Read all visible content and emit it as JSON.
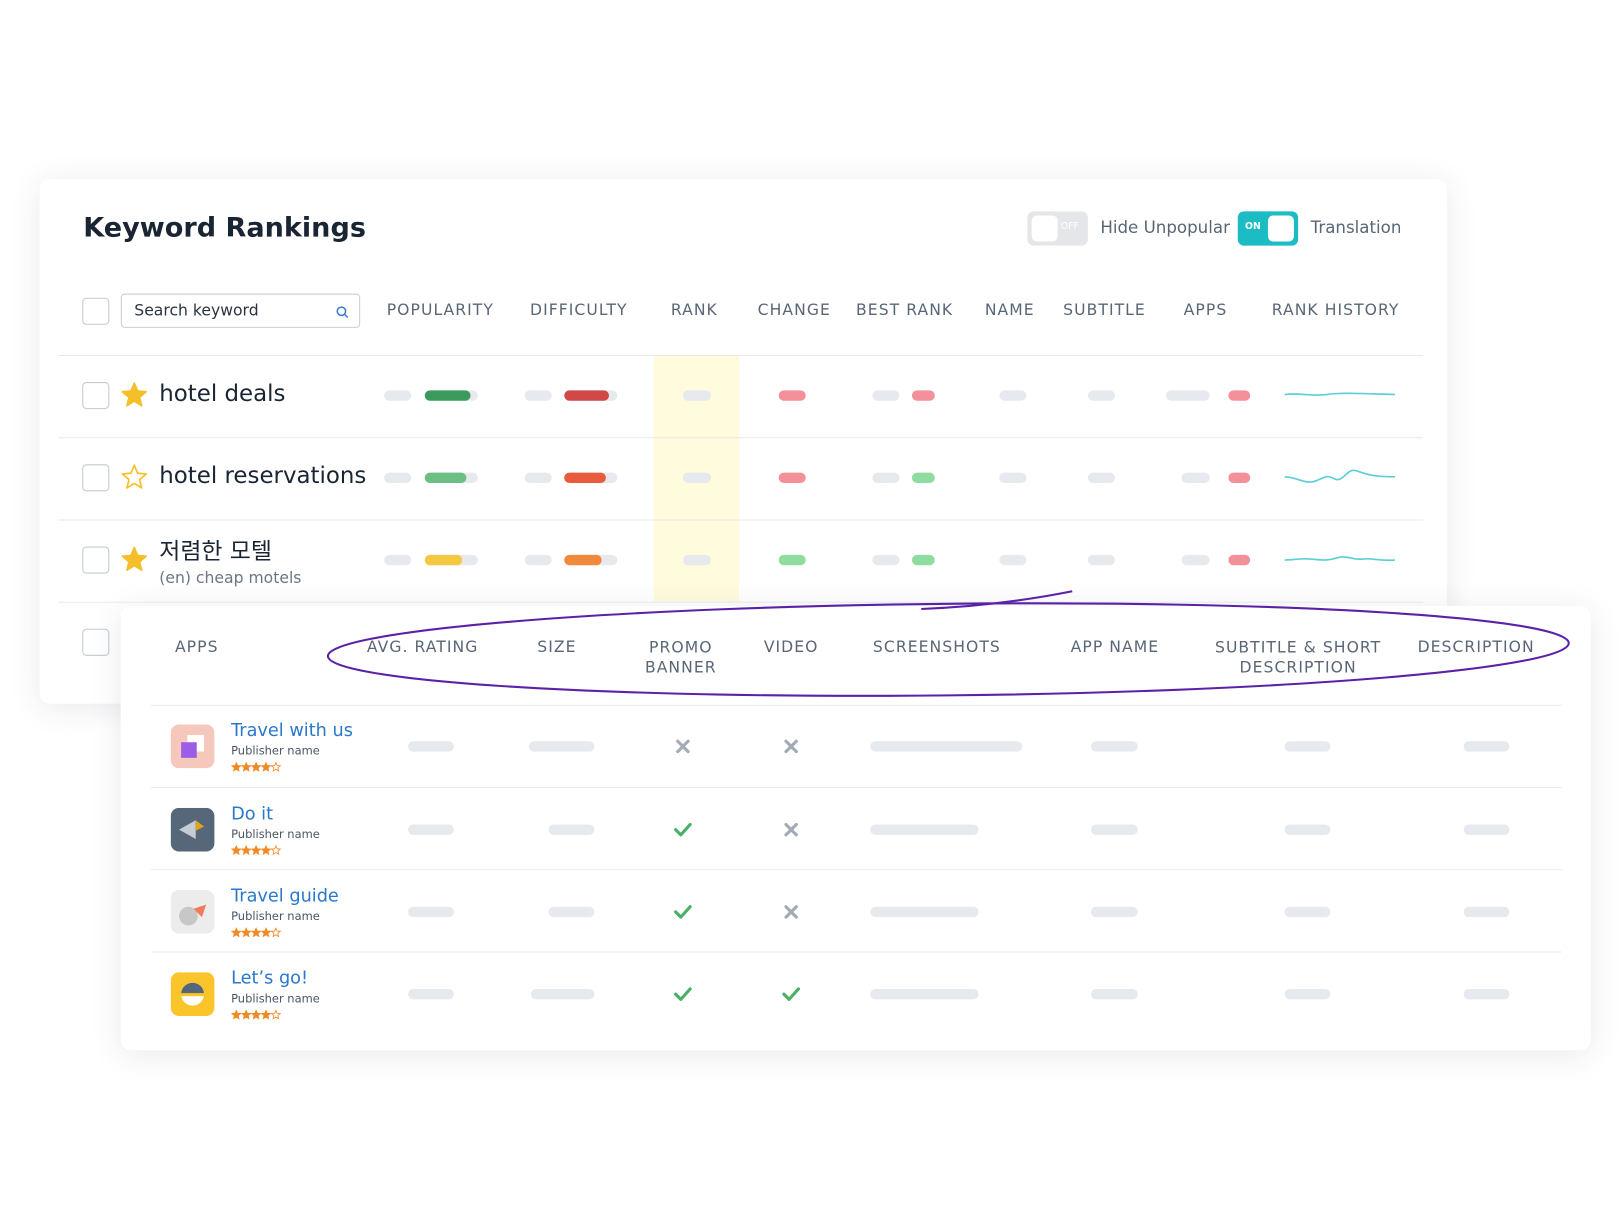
{
  "header": {
    "title": "Keyword Rankings",
    "toggles": [
      {
        "state": "OFF",
        "label": "Hide Unpopular"
      },
      {
        "state": "ON",
        "label": "Translation"
      }
    ]
  },
  "keyword_table": {
    "search_placeholder": "Search keyword",
    "columns": [
      "POPULARITY",
      "DIFFICULTY",
      "RANK",
      "CHANGE",
      "BEST RANK",
      "NAME",
      "SUBTITLE",
      "APPS",
      "RANK HISTORY"
    ],
    "rows": [
      {
        "keyword": "hotel deals"
      },
      {
        "keyword": "hotel reservations"
      },
      {
        "keyword": "저렴한 모텔",
        "translation": "(en) cheap motels"
      }
    ]
  },
  "apps_table": {
    "columns": [
      "APPS",
      "AVG. RATING",
      "SIZE",
      "PROMO BANNER",
      "VIDEO",
      "SCREENSHOTS",
      "APP NAME",
      "SUBTITLE & SHORT DESCRIPTION",
      "DESCRIPTION"
    ],
    "rows": [
      {
        "name": "Travel with us",
        "publisher": "Publisher name"
      },
      {
        "name": "Do it",
        "publisher": "Publisher name"
      },
      {
        "name": "Travel guide",
        "publisher": "Publisher name"
      },
      {
        "name": "Let’s go!",
        "publisher": "Publisher name"
      }
    ]
  }
}
